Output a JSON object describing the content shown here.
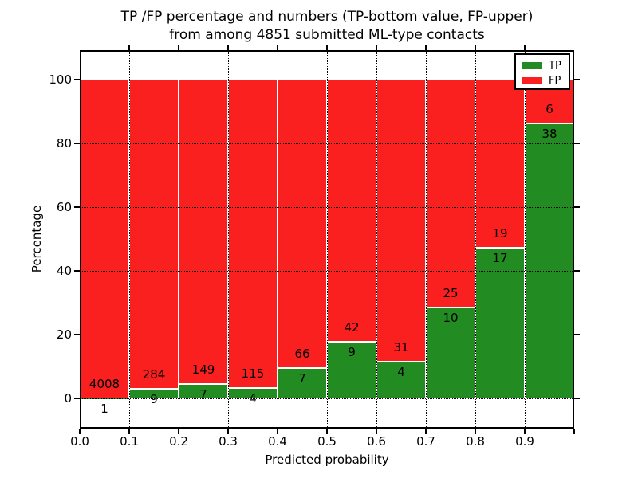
{
  "figure": {
    "title_line1": "TP /FP percentage and numbers (TP-bottom value, FP-upper)",
    "title_line2": "from among 4851 submitted ML-type contacts"
  },
  "chart_data": {
    "type": "bar",
    "stacked": true,
    "normalized": "percent (each bin's TP+FP stack totals 100%)",
    "title": "TP /FP percentage and numbers (TP-bottom value, FP-upper) from among 4851 submitted ML-type contacts",
    "xlabel": "Predicted probability",
    "ylabel": "Percentage",
    "total_contacts": 4851,
    "bins": [
      "0.0-0.1",
      "0.1-0.2",
      "0.2-0.3",
      "0.3-0.4",
      "0.4-0.5",
      "0.5-0.6",
      "0.6-0.7",
      "0.7-0.8",
      "0.8-0.9",
      "0.9-1.0"
    ],
    "series": [
      {
        "name": "TP",
        "color": "#228b22",
        "counts": [
          1,
          9,
          7,
          4,
          7,
          9,
          4,
          10,
          17,
          38
        ]
      },
      {
        "name": "FP",
        "color": "#fa2020",
        "counts": [
          4008,
          284,
          149,
          115,
          66,
          42,
          31,
          25,
          19,
          6
        ]
      }
    ],
    "bar_label_rule": "TP count printed below the TP/FP boundary, FP count printed above it",
    "x_tick_labels": [
      "0.0",
      "0.1",
      "0.2",
      "0.3",
      "0.4",
      "0.5",
      "0.6",
      "0.7",
      "0.8",
      "0.9"
    ],
    "y_ticks": [
      0,
      20,
      40,
      60,
      80,
      100
    ],
    "xlim": [
      0.0,
      1.0
    ],
    "ylim": [
      -9.5,
      109.5
    ],
    "grid": "dotted black, horizontal at y-ticks and vertical at x-ticks, drawn over bars",
    "bar_edge_color": "#ffffff",
    "legend": {
      "position": "upper right",
      "entries": [
        "TP",
        "FP"
      ]
    }
  }
}
